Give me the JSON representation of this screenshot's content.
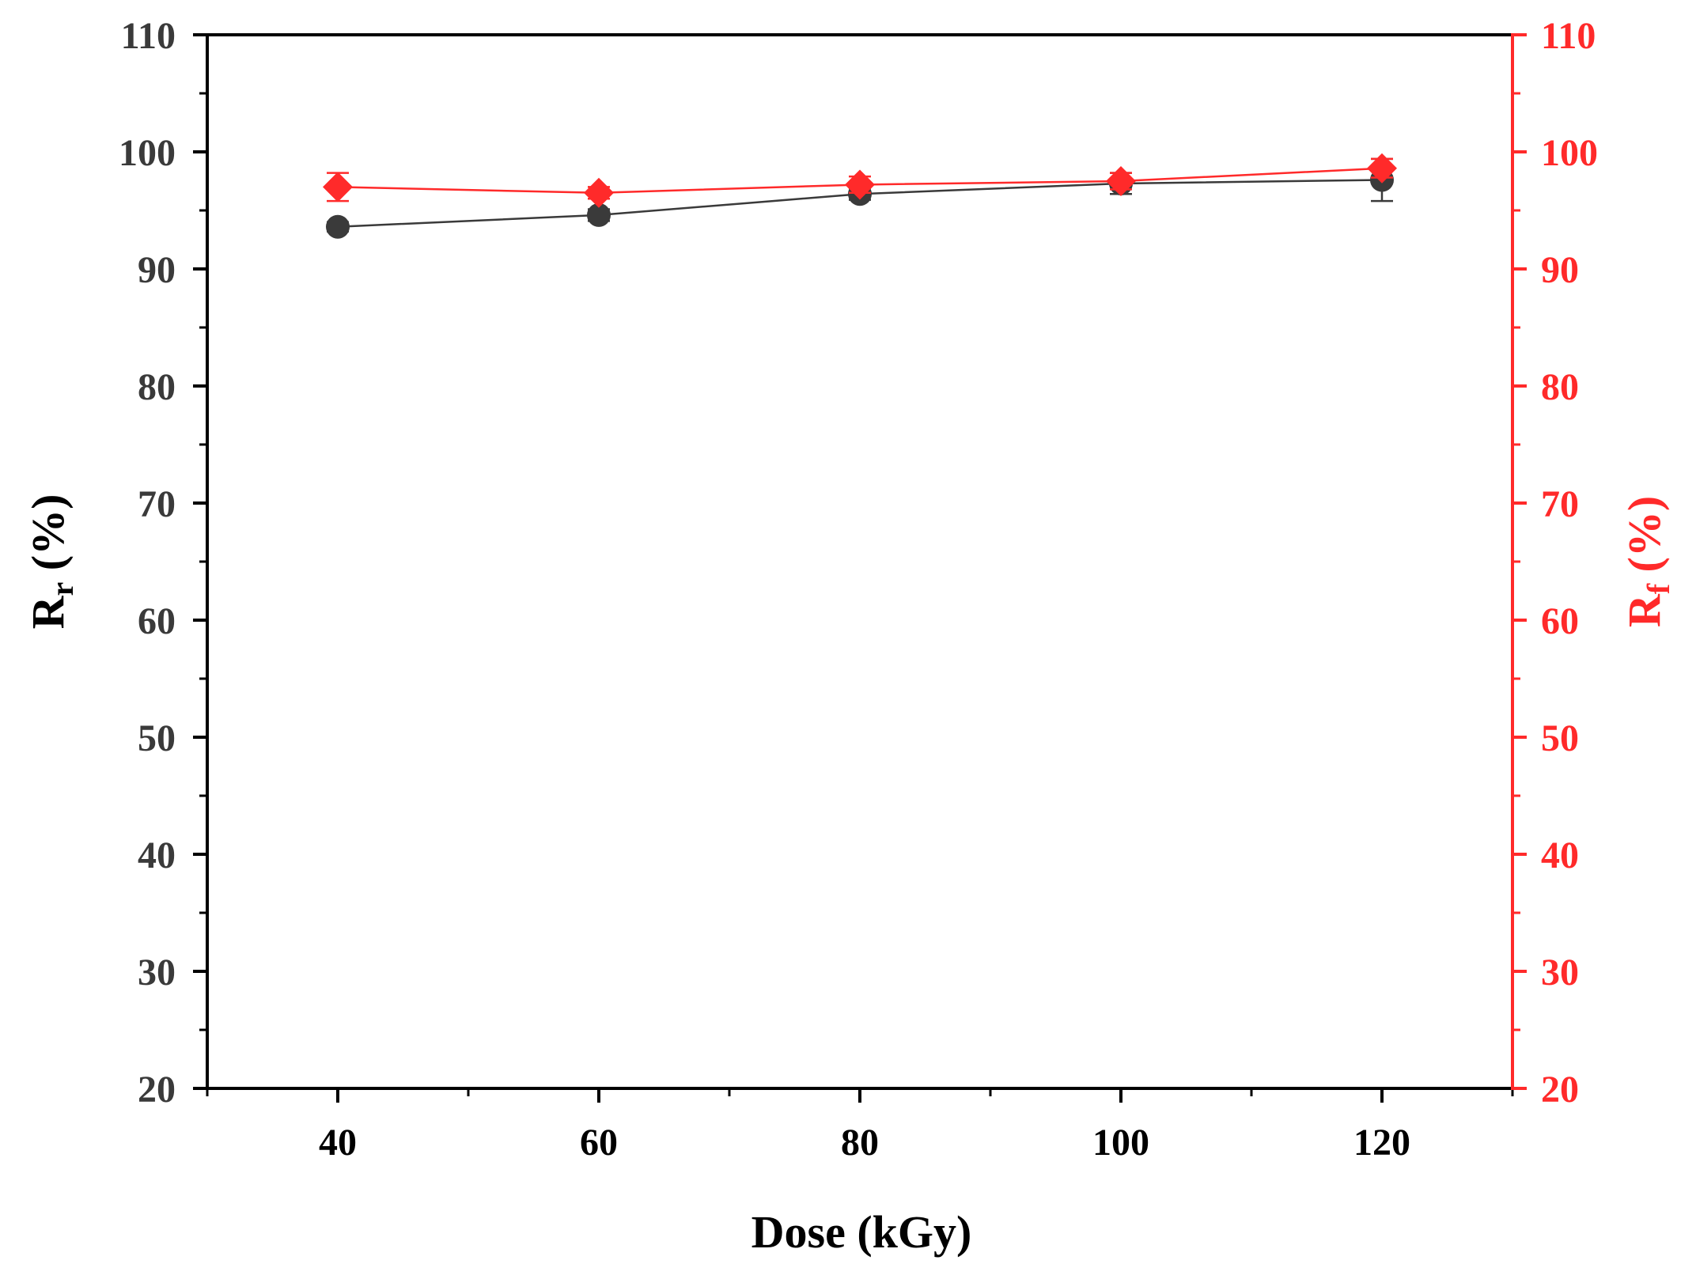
{
  "chart_data": {
    "type": "line",
    "xlabel": "Dose (kGy)",
    "xlim": [
      30,
      130
    ],
    "x_ticks": [
      "40",
      "60",
      "80",
      "100",
      "120"
    ],
    "y_left": {
      "label_main": "R",
      "label_sub": "r",
      "label_unit": " (%)",
      "ylim": [
        20,
        110
      ],
      "ticks": [
        "20",
        "30",
        "40",
        "50",
        "60",
        "70",
        "80",
        "90",
        "100",
        "110"
      ],
      "color": "#000000",
      "tick_color": "#3a3a3a"
    },
    "y_right": {
      "label_main": "R",
      "label_sub": "f",
      "label_unit": " (%)",
      "ylim": [
        20,
        110
      ],
      "ticks": [
        "20",
        "30",
        "40",
        "50",
        "60",
        "70",
        "80",
        "90",
        "100",
        "110"
      ],
      "color": "#ff2a2a"
    },
    "series": [
      {
        "axis": "left",
        "marker": "circle",
        "color": "#3a3a3a",
        "line_color": "#3a3a3a",
        "x": [
          40,
          60,
          80,
          100,
          120
        ],
        "y": [
          93.6,
          94.6,
          96.4,
          97.3,
          97.6
        ],
        "error": [
          0.4,
          0.5,
          0.5,
          0.9,
          1.8
        ]
      },
      {
        "axis": "right",
        "marker": "diamond",
        "color": "#ff2a2a",
        "line_color": "#ff2a2a",
        "x": [
          40,
          60,
          80,
          100,
          120
        ],
        "y": [
          97.0,
          96.5,
          97.2,
          97.5,
          98.6
        ],
        "error": [
          1.2,
          0.5,
          0.7,
          0.7,
          0.8
        ]
      }
    ]
  }
}
